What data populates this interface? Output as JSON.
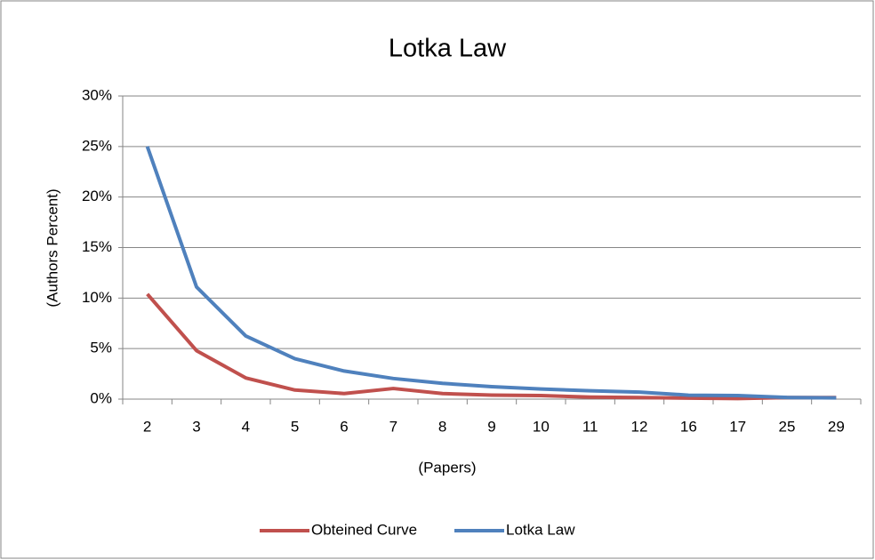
{
  "chart_data": {
    "type": "line",
    "title": "Lotka Law",
    "x_label": "(Papers)",
    "y_label": "(Authors Percent)",
    "categories": [
      "2",
      "3",
      "4",
      "5",
      "6",
      "7",
      "8",
      "9",
      "10",
      "11",
      "12",
      "16",
      "17",
      "25",
      "29"
    ],
    "series": [
      {
        "name": "Obteined Curve",
        "color": "#c0504d",
        "values": [
          10.4,
          4.8,
          2.1,
          0.9,
          0.55,
          1.05,
          0.55,
          0.4,
          0.35,
          0.2,
          0.15,
          0.1,
          0.05,
          0.15,
          0.15
        ]
      },
      {
        "name": "Lotka Law",
        "color": "#4f81bd",
        "values": [
          25,
          11.1,
          6.25,
          4,
          2.78,
          2.04,
          1.56,
          1.23,
          1,
          0.83,
          0.69,
          0.39,
          0.35,
          0.16,
          0.12
        ]
      }
    ],
    "ylim": [
      0,
      30
    ],
    "yticks": [
      {
        "value": 0,
        "label": "0%"
      },
      {
        "value": 5,
        "label": "5%"
      },
      {
        "value": 10,
        "label": "10%"
      },
      {
        "value": 15,
        "label": "15%"
      },
      {
        "value": 20,
        "label": "20%"
      },
      {
        "value": 25,
        "label": "25%"
      },
      {
        "value": 30,
        "label": "30%"
      }
    ],
    "grid": true,
    "legend": "bottom"
  }
}
